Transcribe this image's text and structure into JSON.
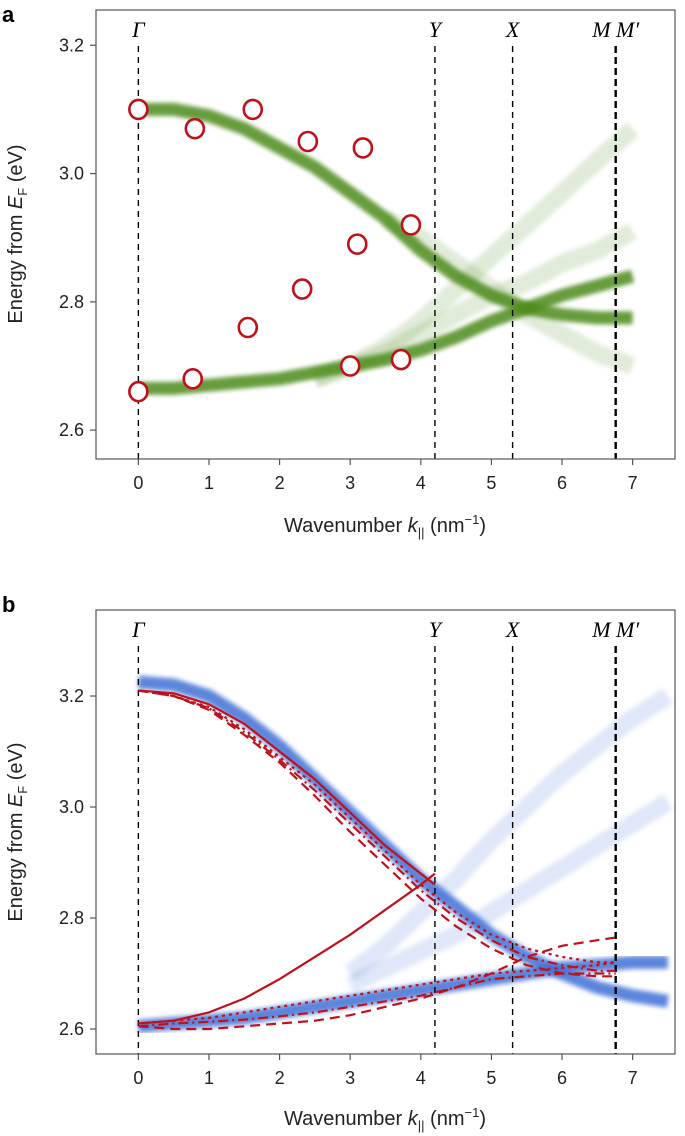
{
  "chart_data": [
    {
      "panel": "a",
      "type": "scatter",
      "xlabel_main": "Wavenumber ",
      "xlabel_sym": "k",
      "xlabel_sub": "||",
      "xlabel_unit": " (nm",
      "xlabel_exp": "−1",
      "xlabel_close": ")",
      "ylabel_main": "Energy from ",
      "ylabel_sym": "E",
      "ylabel_sub": "F",
      "ylabel_unit": " (eV)",
      "xlim": [
        -0.6,
        7.6
      ],
      "ylim": [
        2.555,
        3.255
      ],
      "xticks": [
        0,
        1,
        2,
        3,
        4,
        5,
        6,
        7
      ],
      "yticks": [
        2.6,
        2.8,
        3.0,
        3.2
      ],
      "grid": false,
      "points": [
        {
          "x": 0.0,
          "y": 3.1
        },
        {
          "x": 0.8,
          "y": 3.07
        },
        {
          "x": 1.62,
          "y": 3.1
        },
        {
          "x": 2.4,
          "y": 3.05
        },
        {
          "x": 3.18,
          "y": 3.04
        },
        {
          "x": 3.86,
          "y": 2.92
        },
        {
          "x": 3.1,
          "y": 2.89
        },
        {
          "x": 2.32,
          "y": 2.82
        },
        {
          "x": 1.55,
          "y": 2.76
        },
        {
          "x": 0.0,
          "y": 2.66
        },
        {
          "x": 0.77,
          "y": 2.68
        },
        {
          "x": 3.0,
          "y": 2.7
        },
        {
          "x": 3.72,
          "y": 2.71
        }
      ],
      "bands": [
        {
          "name": "upper",
          "x": [
            0,
            0.5,
            1,
            1.5,
            2,
            2.5,
            3,
            3.5,
            4,
            4.5,
            5,
            5.5,
            6,
            6.5,
            7
          ],
          "y": [
            3.1,
            3.1,
            3.09,
            3.07,
            3.04,
            3.01,
            2.97,
            2.93,
            2.88,
            2.84,
            2.81,
            2.79,
            2.78,
            2.775,
            2.775
          ]
        },
        {
          "name": "lower",
          "x": [
            0,
            0.5,
            1,
            1.5,
            2,
            2.5,
            3,
            3.5,
            4,
            4.5,
            5,
            5.5,
            6,
            6.5,
            7
          ],
          "y": [
            2.665,
            2.665,
            2.67,
            2.675,
            2.68,
            2.69,
            2.7,
            2.71,
            2.725,
            2.745,
            2.77,
            2.79,
            2.81,
            2.825,
            2.84
          ]
        },
        {
          "name": "faint-1",
          "x": [
            2.5,
            3,
            3.5,
            4,
            4.5,
            5,
            5.5,
            6,
            6.5,
            7
          ],
          "y": [
            2.68,
            2.7,
            2.73,
            2.77,
            2.82,
            2.87,
            2.92,
            2.97,
            3.02,
            3.07
          ]
        },
        {
          "name": "faint-2",
          "x": [
            2.5,
            3,
            3.5,
            4,
            4.5,
            5,
            5.5,
            6,
            6.5,
            7
          ],
          "y": [
            2.68,
            2.7,
            2.72,
            2.75,
            2.78,
            2.81,
            2.83,
            2.86,
            2.88,
            2.91
          ]
        },
        {
          "name": "faint-3",
          "x": [
            3.5,
            4,
            4.5,
            5,
            5.5,
            6,
            6.5,
            7
          ],
          "y": [
            2.93,
            2.9,
            2.86,
            2.82,
            2.78,
            2.75,
            2.72,
            2.7
          ]
        }
      ],
      "vlines": [
        {
          "x": 0.0,
          "label": "Γ",
          "heavy": false
        },
        {
          "x": 4.2,
          "label": "Y",
          "heavy": false
        },
        {
          "x": 5.3,
          "label": "X",
          "heavy": false
        },
        {
          "x": 6.76,
          "label": "M M′",
          "heavy": true
        }
      ],
      "band_color": "#4e8b1f",
      "marker_color": "#c0111b"
    },
    {
      "panel": "b",
      "type": "line",
      "xlabel_main": "Wavenumber ",
      "xlabel_sym": "k",
      "xlabel_sub": "||",
      "xlabel_unit": " (nm",
      "xlabel_exp": "−1",
      "xlabel_close": ")",
      "ylabel_main": "Energy from ",
      "ylabel_sym": "E",
      "ylabel_sub": "F",
      "ylabel_unit": " (eV)",
      "xlim": [
        -0.6,
        7.6
      ],
      "ylim": [
        2.555,
        3.355
      ],
      "xticks": [
        0,
        1,
        2,
        3,
        4,
        5,
        6,
        7
      ],
      "yticks": [
        2.6,
        2.8,
        3.0,
        3.2
      ],
      "grid": false,
      "bands": [
        {
          "name": "upper",
          "x": [
            0,
            0.5,
            1,
            1.5,
            2,
            2.5,
            3,
            3.5,
            4,
            4.5,
            5,
            5.5,
            6,
            6.5,
            7,
            7.5
          ],
          "y": [
            3.225,
            3.22,
            3.2,
            3.16,
            3.11,
            3.05,
            2.99,
            2.93,
            2.87,
            2.82,
            2.77,
            2.73,
            2.7,
            2.675,
            2.66,
            2.65
          ]
        },
        {
          "name": "lower",
          "x": [
            0,
            0.5,
            1,
            1.5,
            2,
            2.5,
            3,
            3.5,
            4,
            4.5,
            5,
            5.5,
            6,
            6.5,
            7,
            7.5
          ],
          "y": [
            2.605,
            2.61,
            2.615,
            2.62,
            2.63,
            2.64,
            2.65,
            2.66,
            2.67,
            2.68,
            2.69,
            2.7,
            2.71,
            2.715,
            2.72,
            2.72
          ]
        },
        {
          "name": "faint-1",
          "x": [
            3,
            3.5,
            4,
            4.5,
            5,
            5.5,
            6,
            6.5,
            7,
            7.5
          ],
          "y": [
            2.7,
            2.75,
            2.81,
            2.87,
            2.94,
            3.0,
            3.06,
            3.11,
            3.16,
            3.2
          ]
        },
        {
          "name": "faint-2",
          "x": [
            3,
            3.5,
            4,
            4.5,
            5,
            5.5,
            6,
            6.5,
            7,
            7.5
          ],
          "y": [
            2.68,
            2.71,
            2.74,
            2.77,
            2.81,
            2.85,
            2.89,
            2.93,
            2.97,
            3.01
          ]
        }
      ],
      "series": [
        {
          "style": "solid",
          "x": [
            0,
            0.5,
            1,
            1.5,
            2,
            2.5,
            3,
            3.5,
            4,
            4.2
          ],
          "y": [
            3.21,
            3.205,
            3.185,
            3.15,
            3.1,
            3.05,
            2.99,
            2.93,
            2.88,
            2.86
          ]
        },
        {
          "style": "dashed",
          "x": [
            0,
            0.5,
            1,
            1.5,
            2,
            2.5,
            3,
            3.5,
            4,
            4.5,
            5,
            5.5,
            6,
            6.5,
            6.76
          ],
          "y": [
            3.21,
            3.2,
            3.175,
            3.13,
            3.08,
            3.02,
            2.955,
            2.895,
            2.835,
            2.785,
            2.745,
            2.715,
            2.7,
            2.695,
            2.695
          ]
        },
        {
          "style": "dotted",
          "x": [
            0,
            0.5,
            1,
            1.5,
            2,
            2.5,
            3,
            3.5,
            4,
            4.5,
            5,
            5.5,
            6,
            6.5,
            6.76
          ],
          "y": [
            3.21,
            3.2,
            3.18,
            3.14,
            3.09,
            3.04,
            2.98,
            2.92,
            2.86,
            2.81,
            2.77,
            2.745,
            2.73,
            2.72,
            2.72
          ]
        },
        {
          "style": "dashdot",
          "x": [
            0,
            0.5,
            1,
            1.5,
            2,
            2.5,
            3,
            3.5,
            4,
            4.5,
            5,
            5.5,
            6,
            6.5,
            6.76
          ],
          "y": [
            3.21,
            3.2,
            3.178,
            3.135,
            3.085,
            3.03,
            2.97,
            2.91,
            2.85,
            2.8,
            2.76,
            2.73,
            2.715,
            2.705,
            2.705
          ]
        },
        {
          "style": "solid",
          "x": [
            0,
            0.5,
            1,
            1.5,
            2,
            2.5,
            3,
            3.5,
            4,
            4.2
          ],
          "y": [
            2.61,
            2.615,
            2.63,
            2.655,
            2.69,
            2.73,
            2.77,
            2.815,
            2.86,
            2.88
          ]
        },
        {
          "style": "dashed",
          "x": [
            0,
            0.5,
            1,
            1.5,
            2,
            2.5,
            3,
            3.5,
            4,
            4.5,
            5,
            5.5,
            6,
            6.5,
            6.76
          ],
          "y": [
            2.605,
            2.6,
            2.6,
            2.605,
            2.61,
            2.615,
            2.625,
            2.64,
            2.655,
            2.675,
            2.7,
            2.73,
            2.75,
            2.76,
            2.765
          ]
        },
        {
          "style": "dotted",
          "x": [
            0,
            0.5,
            1,
            1.5,
            2,
            2.5,
            3,
            3.5,
            4,
            4.5,
            5,
            5.5,
            6,
            6.5,
            6.76
          ],
          "y": [
            2.61,
            2.615,
            2.62,
            2.63,
            2.64,
            2.65,
            2.66,
            2.67,
            2.68,
            2.69,
            2.7,
            2.705,
            2.71,
            2.715,
            2.72
          ]
        },
        {
          "style": "dashdot",
          "x": [
            0,
            0.5,
            1,
            1.5,
            2,
            2.5,
            3,
            3.5,
            4,
            4.5,
            5,
            5.5,
            6,
            6.5,
            6.76
          ],
          "y": [
            2.605,
            2.61,
            2.613,
            2.617,
            2.623,
            2.63,
            2.64,
            2.65,
            2.66,
            2.675,
            2.69,
            2.695,
            2.7,
            2.7,
            2.7
          ]
        }
      ],
      "vlines": [
        {
          "x": 0.0,
          "label": "Γ",
          "heavy": false
        },
        {
          "x": 4.2,
          "label": "Y",
          "heavy": false
        },
        {
          "x": 5.3,
          "label": "X",
          "heavy": false
        },
        {
          "x": 6.76,
          "label": "M M′",
          "heavy": true
        }
      ],
      "band_color": "#3f6fd6",
      "line_color": "#c0111b"
    }
  ],
  "panels": {
    "a_label": "a",
    "b_label": "b"
  }
}
